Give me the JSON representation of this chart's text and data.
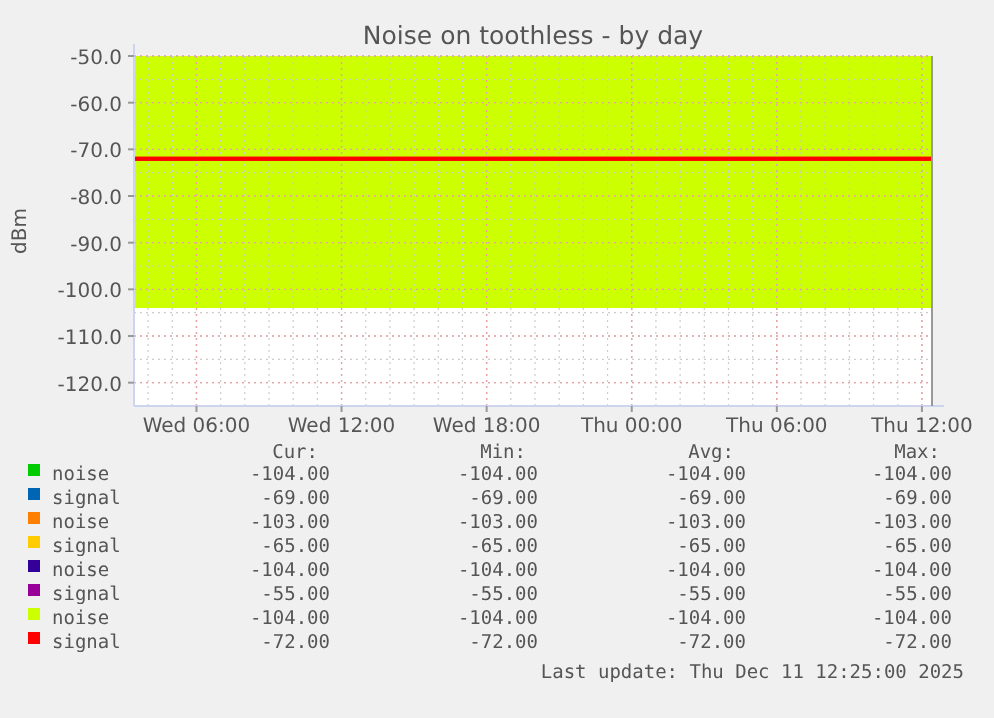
{
  "chart_data": {
    "type": "area",
    "title": "Noise on toothless - by day",
    "ylabel": "dBm",
    "x": [
      "2025-12-10T03:25",
      "2025-12-11T12:25"
    ],
    "xlim": [
      "2025-12-10T03:25",
      "2025-12-11T12:25"
    ],
    "xticks": [
      {
        "value": "2025-12-10T06:00",
        "label": "Wed 06:00"
      },
      {
        "value": "2025-12-10T12:00",
        "label": "Wed 12:00"
      },
      {
        "value": "2025-12-10T18:00",
        "label": "Wed 18:00"
      },
      {
        "value": "2025-12-11T00:00",
        "label": "Thu 00:00"
      },
      {
        "value": "2025-12-11T06:00",
        "label": "Thu 06:00"
      },
      {
        "value": "2025-12-11T12:00",
        "label": "Thu 12:00"
      }
    ],
    "ylim": [
      -125,
      -50
    ],
    "yticks": [
      {
        "value": -50,
        "label": "-50.0"
      },
      {
        "value": -60,
        "label": "-60.0"
      },
      {
        "value": -70,
        "label": "-70.0"
      },
      {
        "value": -80,
        "label": "-80.0"
      },
      {
        "value": -90,
        "label": "-90.0"
      },
      {
        "value": -100,
        "label": "-100.0"
      },
      {
        "value": -110,
        "label": "-110.0"
      },
      {
        "value": -120,
        "label": "-120.0"
      }
    ],
    "grid": true,
    "legend": "bottom",
    "marker": "none",
    "line_style": "solid",
    "series": [
      {
        "name": "noise",
        "color": "#00cc00",
        "values": [
          null,
          null
        ]
      },
      {
        "name": "signal",
        "color": "#0066b3",
        "values": [
          null,
          null
        ]
      },
      {
        "name": "noise",
        "color": "#ff8000",
        "values": [
          null,
          null
        ]
      },
      {
        "name": "signal",
        "color": "#ffcc00",
        "values": [
          null,
          null
        ]
      },
      {
        "name": "noise",
        "color": "#330099",
        "values": [
          null,
          null
        ]
      },
      {
        "name": "signal",
        "color": "#990099",
        "values": [
          null,
          null
        ]
      },
      {
        "name": "noise",
        "color": "#ccff00",
        "values": [
          -104,
          -104
        ]
      },
      {
        "name": "signal",
        "type": "line",
        "color": "#ff0000",
        "values": [
          -72,
          -72
        ]
      }
    ],
    "annotations": [
      "Cur:",
      "Min:",
      "Avg:",
      "Max:",
      "-104.00",
      "-104.00",
      "-104.00",
      "-104.00",
      "-69.00",
      "-69.00",
      "-69.00",
      "-69.00",
      "-103.00",
      "-103.00",
      "-103.00",
      "-103.00",
      "-65.00",
      "-65.00",
      "-65.00",
      "-65.00",
      "-104.00",
      "-104.00",
      "-104.00",
      "-104.00",
      "-55.00",
      "-55.00",
      "-55.00",
      "-55.00",
      "-104.00",
      "-104.00",
      "-104.00",
      "-104.00",
      "-72.00",
      "-72.00",
      "-72.00",
      "-72.00",
      "Last update: Thu Dec 11 12:25:00 2025"
    ]
  }
}
